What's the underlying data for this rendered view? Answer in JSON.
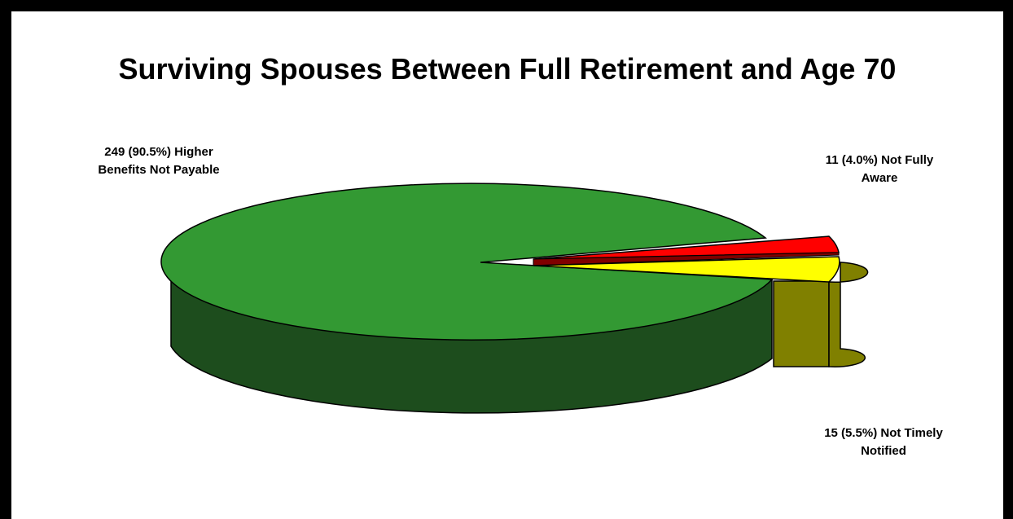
{
  "chart_data": {
    "type": "pie",
    "title": "Surviving Spouses Between Full Retirement and Age 70",
    "slices": [
      {
        "value": 249,
        "percent": 90.5,
        "label_lines": [
          "249 (90.5%) Higher",
          "Benefits Not Payable"
        ],
        "color": "#339933",
        "side_color": "#1d4d1d"
      },
      {
        "value": 11,
        "percent": 4.0,
        "label_lines": [
          "11 (4.0%) Not Fully",
          "Aware"
        ],
        "color": "#ff0000",
        "side_color": "#800000"
      },
      {
        "value": 15,
        "percent": 5.5,
        "label_lines": [
          "15 (5.5%) Not Timely",
          "Notified"
        ],
        "color": "#ffff00",
        "side_color": "#808000"
      }
    ],
    "style": "3d-exploded"
  }
}
